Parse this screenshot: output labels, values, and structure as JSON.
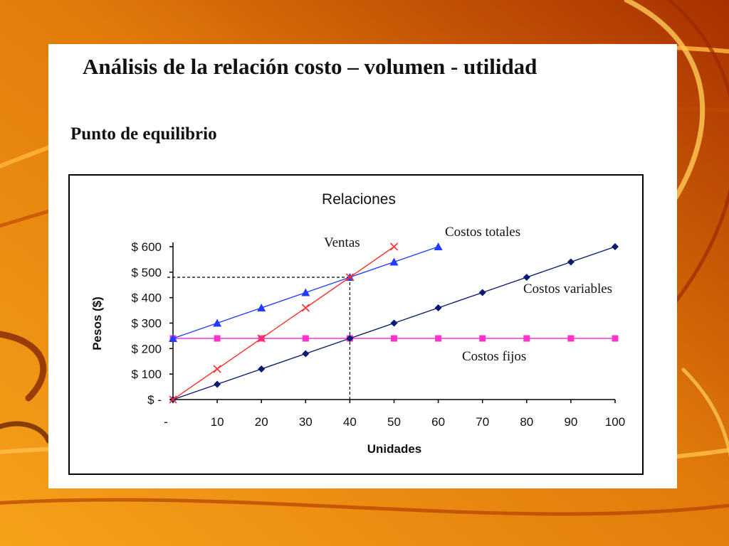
{
  "slide": {
    "title": "Análisis de la relación costo – volumen - utilidad",
    "subtitle": "Punto de equilibrio"
  },
  "colors": {
    "ventas": "#ff3030",
    "costos_totales": "#1f3cff",
    "costos_variables": "#0a1a6e",
    "costos_fijos": "#ff33cc",
    "background_orange": "#f08a10",
    "background_dark": "#b83800"
  },
  "chart_data": {
    "type": "line",
    "title": "Relaciones",
    "xlabel": "Unidades",
    "ylabel": "Pesos ($)",
    "x_tick_labels": [
      "-",
      "10",
      "20",
      "30",
      "40",
      "50",
      "60",
      "70",
      "80",
      "90",
      "100"
    ],
    "y_tick_labels": [
      "$ -",
      "$ 100",
      "$ 200",
      "$ 300",
      "$ 400",
      "$ 500",
      "$ 600"
    ],
    "xlim": [
      0,
      100
    ],
    "ylim": [
      0,
      600
    ],
    "grid": false,
    "series": [
      {
        "name": "Ventas",
        "marker": "x",
        "color_key": "ventas",
        "x": [
          0,
          10,
          20,
          30,
          40,
          50
        ],
        "values": [
          0,
          120,
          240,
          360,
          480,
          600
        ]
      },
      {
        "name": "Costos totales",
        "marker": "triangle",
        "color_key": "costos_totales",
        "x": [
          0,
          10,
          20,
          30,
          40,
          50,
          60
        ],
        "values": [
          240,
          300,
          360,
          420,
          480,
          540,
          600
        ]
      },
      {
        "name": "Costos variables",
        "marker": "diamond",
        "color_key": "costos_variables",
        "x": [
          0,
          10,
          20,
          30,
          40,
          50,
          60,
          70,
          80,
          90,
          100
        ],
        "values": [
          0,
          60,
          120,
          180,
          240,
          300,
          360,
          420,
          480,
          540,
          600
        ]
      },
      {
        "name": "Costos fijos",
        "marker": "square",
        "color_key": "costos_fijos",
        "x": [
          0,
          10,
          20,
          30,
          40,
          50,
          60,
          70,
          80,
          90,
          100
        ],
        "values": [
          240,
          240,
          240,
          240,
          240,
          240,
          240,
          240,
          240,
          240,
          240
        ]
      }
    ],
    "break_even": {
      "x": 40,
      "y": 480
    }
  }
}
